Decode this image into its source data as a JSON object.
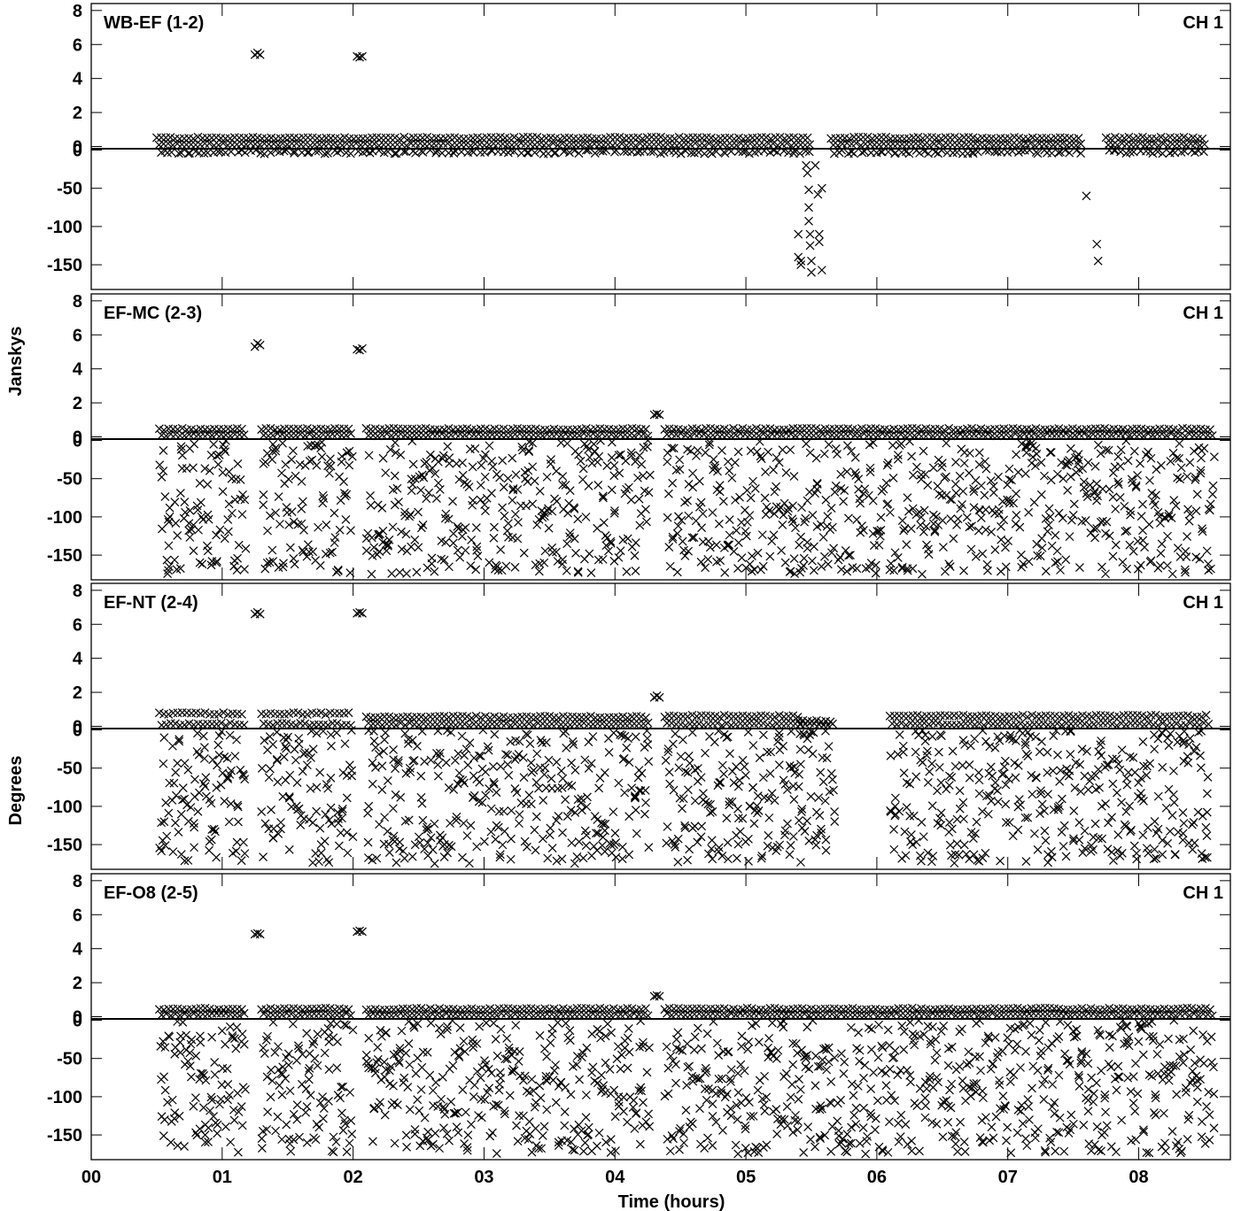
{
  "chart_data": {
    "type": "scatter",
    "marker": "x",
    "marker_color": "#000000",
    "xlabel": "Time (hours)",
    "ylabel_amplitude": "Janskys",
    "ylabel_phase": "Degrees",
    "xlim": [
      0,
      8.7
    ],
    "x_ticks": [
      0,
      1,
      2,
      3,
      4,
      5,
      6,
      7,
      8
    ],
    "x_tick_labels": [
      "00",
      "01",
      "02",
      "03",
      "04",
      "05",
      "06",
      "07",
      "08"
    ],
    "amplitude_ylim": [
      0,
      8.2
    ],
    "amplitude_ticks": [
      0,
      2,
      4,
      6,
      8
    ],
    "amplitude_tick_labels": [
      "0",
      "2",
      "4",
      "6",
      "8"
    ],
    "phase_ylim": [
      -180,
      0
    ],
    "phase_ticks": [
      0,
      -50,
      -100,
      -150
    ],
    "phase_tick_labels": [
      "0",
      "-50",
      "-100",
      "-150"
    ],
    "panels": [
      {
        "baseline": "WB-EF (1-2)",
        "channel": "CH 1",
        "amplitude_points": [
          [
            1.25,
            5.4
          ],
          [
            1.27,
            5.5
          ],
          [
            1.29,
            5.4
          ],
          [
            2.03,
            5.3
          ],
          [
            2.05,
            5.25
          ],
          [
            2.07,
            5.3
          ]
        ],
        "phase_outliers": [
          [
            5.4,
            -110
          ],
          [
            5.4,
            -140
          ],
          [
            5.42,
            -145
          ],
          [
            5.42,
            -150
          ],
          [
            5.46,
            -20
          ],
          [
            5.47,
            -30
          ],
          [
            5.48,
            -52
          ],
          [
            5.48,
            -75
          ],
          [
            5.48,
            -93
          ],
          [
            5.49,
            -110
          ],
          [
            5.49,
            -125
          ],
          [
            5.5,
            -145
          ],
          [
            5.5,
            -160
          ],
          [
            5.53,
            -20
          ],
          [
            5.55,
            -58
          ],
          [
            5.56,
            -110
          ],
          [
            5.56,
            -120
          ],
          [
            5.58,
            -50
          ],
          [
            5.58,
            -157
          ],
          [
            7.6,
            -60
          ],
          [
            7.68,
            -123
          ],
          [
            7.69,
            -145
          ]
        ],
        "segments": [
          {
            "start": 0.5,
            "end": 5.5,
            "amp": 0.5,
            "phase_min": -5,
            "phase_max": 0
          },
          {
            "start": 5.65,
            "end": 7.55,
            "amp": 0.5,
            "phase_min": -5,
            "phase_max": 0
          },
          {
            "start": 7.75,
            "end": 8.52,
            "amp": 0.5,
            "phase_min": -5,
            "phase_max": 0
          }
        ]
      },
      {
        "baseline": "EF-MC (2-3)",
        "channel": "CH 1",
        "amplitude_points": [
          [
            1.25,
            5.3
          ],
          [
            1.27,
            5.5
          ],
          [
            1.29,
            5.4
          ],
          [
            2.03,
            5.15
          ],
          [
            2.05,
            5.1
          ],
          [
            2.07,
            5.2
          ],
          [
            4.3,
            1.3
          ],
          [
            4.32,
            1.35
          ],
          [
            4.34,
            1.3
          ]
        ],
        "phase_outliers": [],
        "segments": [
          {
            "start": 0.52,
            "end": 1.18,
            "amp": 0.45,
            "phase_min": -175,
            "phase_max": 0
          },
          {
            "start": 1.3,
            "end": 1.97,
            "amp": 0.45,
            "phase_min": -175,
            "phase_max": 0
          },
          {
            "start": 2.1,
            "end": 4.25,
            "amp": 0.45,
            "phase_min": -175,
            "phase_max": 0
          },
          {
            "start": 4.38,
            "end": 8.55,
            "amp": 0.45,
            "phase_min": -175,
            "phase_max": 0
          }
        ]
      },
      {
        "baseline": "EF-NT (2-4)",
        "channel": "CH 1",
        "amplitude_points": [
          [
            1.25,
            6.6
          ],
          [
            1.27,
            6.7
          ],
          [
            1.29,
            6.6
          ],
          [
            2.03,
            6.65
          ],
          [
            2.05,
            6.7
          ],
          [
            2.07,
            6.65
          ],
          [
            4.3,
            1.7
          ],
          [
            4.32,
            1.8
          ],
          [
            4.34,
            1.7
          ]
        ],
        "phase_outliers": [],
        "segments": [
          {
            "start": 0.52,
            "end": 1.18,
            "amp": 0.75,
            "phase_min": -175,
            "phase_max": 0
          },
          {
            "start": 1.3,
            "end": 1.97,
            "amp": 0.75,
            "phase_min": -175,
            "phase_max": 0
          },
          {
            "start": 2.1,
            "end": 4.25,
            "amp": 0.55,
            "phase_min": -175,
            "phase_max": 0
          },
          {
            "start": 4.38,
            "end": 5.4,
            "amp": 0.6,
            "phase_min": -175,
            "phase_max": 0
          },
          {
            "start": 5.4,
            "end": 5.65,
            "amp": 0.3,
            "phase_min": -175,
            "phase_max": 0
          },
          {
            "start": 6.1,
            "end": 8.55,
            "amp": 0.6,
            "phase_min": -175,
            "phase_max": 0
          }
        ]
      },
      {
        "baseline": "EF-O8 (2-5)",
        "channel": "CH 1",
        "amplitude_points": [
          [
            1.25,
            4.85
          ],
          [
            1.27,
            4.9
          ],
          [
            1.29,
            4.85
          ],
          [
            2.03,
            5.0
          ],
          [
            2.05,
            5.05
          ],
          [
            2.07,
            5.0
          ],
          [
            4.3,
            1.2
          ],
          [
            4.32,
            1.25
          ],
          [
            4.34,
            1.2
          ]
        ],
        "phase_outliers": [],
        "segments": [
          {
            "start": 0.52,
            "end": 1.18,
            "amp": 0.45,
            "phase_min": -175,
            "phase_max": 0
          },
          {
            "start": 1.3,
            "end": 1.97,
            "amp": 0.45,
            "phase_min": -175,
            "phase_max": 0
          },
          {
            "start": 2.1,
            "end": 4.25,
            "amp": 0.45,
            "phase_min": -175,
            "phase_max": 0
          },
          {
            "start": 4.38,
            "end": 8.55,
            "amp": 0.45,
            "phase_min": -175,
            "phase_max": 0
          }
        ]
      }
    ]
  }
}
